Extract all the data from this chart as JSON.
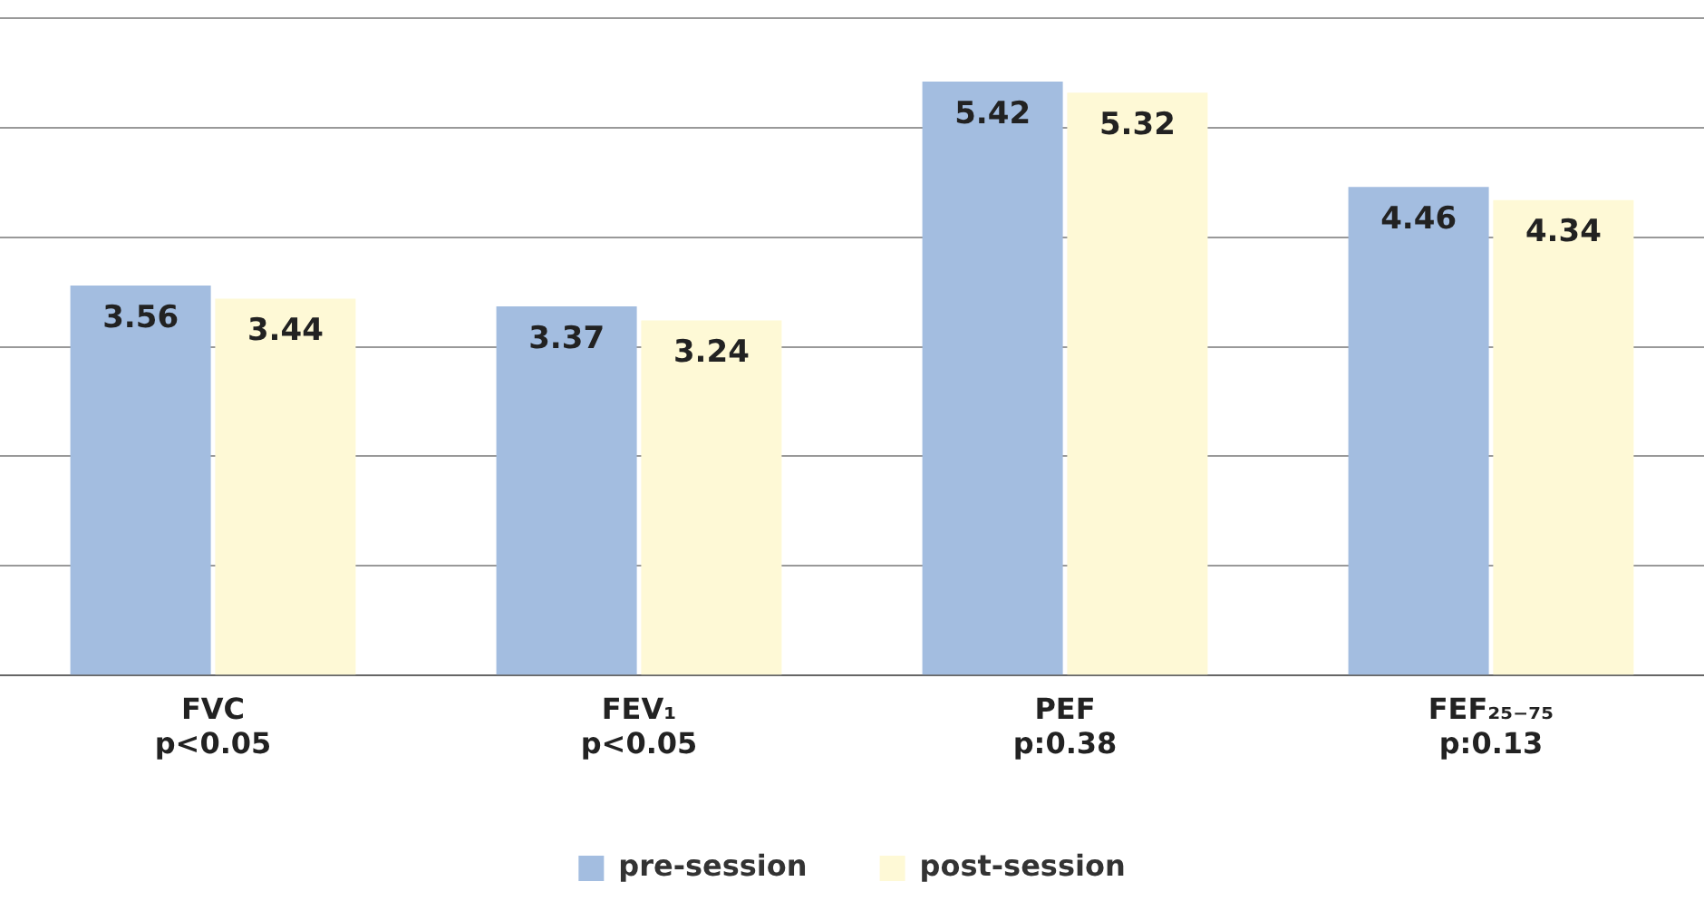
{
  "chart_data": {
    "type": "bar",
    "categories": [
      "FVC\np<0.05",
      "FEV₁\np<0.05",
      "PEF\np:0.38",
      "FEF₂₅₋₇₅\np:0.13"
    ],
    "series": [
      {
        "name": "pre-session",
        "color": "#a3bde0",
        "values": [
          3.56,
          3.37,
          5.42,
          4.46
        ]
      },
      {
        "name": "post-session",
        "color": "#fef9d6",
        "values": [
          3.44,
          3.24,
          5.32,
          4.34
        ]
      }
    ],
    "ylim": [
      0,
      6
    ],
    "yticks": [
      {
        "value": 0,
        "label": null
      },
      {
        "value": 1,
        "label": null
      },
      {
        "value": 2,
        "label": null
      },
      {
        "value": 3,
        "label": null
      },
      {
        "value": 4,
        "label": null
      },
      {
        "value": 5,
        "label": null
      },
      {
        "value": 6,
        "label": null
      }
    ],
    "grid": "y",
    "tick_labels": "x",
    "data_labels": true,
    "legend": "bottom"
  }
}
